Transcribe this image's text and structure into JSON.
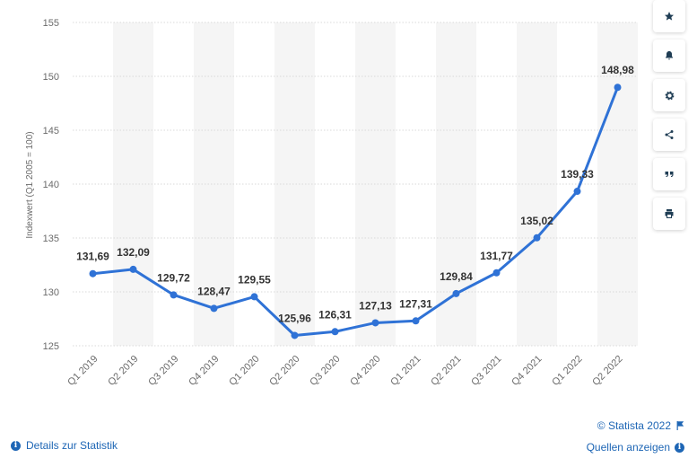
{
  "chart_data": {
    "type": "line",
    "categories": [
      "Q1 2019",
      "Q2 2019",
      "Q3 2019",
      "Q4 2019",
      "Q1 2020",
      "Q2 2020",
      "Q3 2020",
      "Q4 2020",
      "Q1 2021",
      "Q2 2021",
      "Q3 2021",
      "Q4 2021",
      "Q1 2022",
      "Q2 2022"
    ],
    "values": [
      131.69,
      132.09,
      129.72,
      128.47,
      129.55,
      125.96,
      126.31,
      127.13,
      127.31,
      129.84,
      131.77,
      135.02,
      139.33,
      148.98
    ],
    "value_labels": [
      "131,69",
      "132,09",
      "129,72",
      "128,47",
      "129,55",
      "125,96",
      "126,31",
      "127,13",
      "127,31",
      "129,84",
      "131,77",
      "135,02",
      "139,33",
      "148,98"
    ],
    "ylabel": "Indexwert (Q1 2005 = 100)",
    "ylim": [
      125,
      155
    ],
    "yticks": [
      "125",
      "130",
      "135",
      "140",
      "145",
      "150",
      "155"
    ],
    "line_color": "#2f72d6",
    "grid": true,
    "alternating_bands": true,
    "legend": "none"
  },
  "sidebar": {
    "buttons": [
      {
        "name": "favorite-button",
        "icon": "star-icon"
      },
      {
        "name": "notification-button",
        "icon": "bell-icon"
      },
      {
        "name": "settings-button",
        "icon": "gear-icon"
      },
      {
        "name": "share-button",
        "icon": "share-icon"
      },
      {
        "name": "cite-button",
        "icon": "quote-icon"
      },
      {
        "name": "print-button",
        "icon": "print-icon"
      }
    ]
  },
  "footer": {
    "details_label": "Details zur Statistik",
    "copyright": "© Statista 2022",
    "sources_label": "Quellen anzeigen"
  },
  "colors": {
    "accent": "#1e66b5",
    "axis_text": "#6b6b6b",
    "label_text": "#333333",
    "band": "#f5f5f5"
  }
}
